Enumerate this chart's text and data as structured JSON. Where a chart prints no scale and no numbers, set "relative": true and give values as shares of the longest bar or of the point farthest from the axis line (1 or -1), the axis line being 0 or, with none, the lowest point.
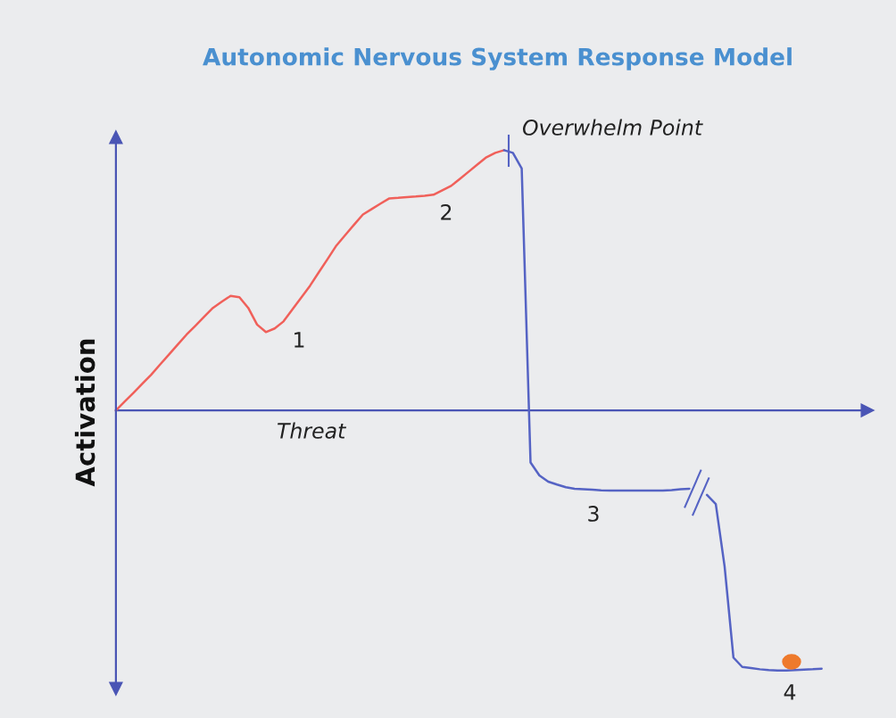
{
  "chart_data": {
    "type": "line",
    "title": "Autonomic Nervous System Response Model",
    "xlabel": "Threat",
    "ylabel": "Activation",
    "relative": true,
    "categories": [
      null,
      null,
      null,
      null,
      null,
      null,
      null,
      null,
      null,
      null,
      null,
      null,
      null,
      null,
      null,
      null,
      null,
      null,
      null,
      null,
      null,
      null,
      null,
      null,
      null,
      null,
      null,
      null,
      null,
      null,
      null,
      null,
      null,
      null,
      null,
      null,
      null,
      null,
      null,
      null,
      null,
      null,
      null,
      null,
      null,
      null,
      null,
      null,
      null,
      null,
      null,
      null,
      null,
      null,
      null,
      null,
      null,
      null,
      null,
      null,
      null,
      null,
      null,
      null,
      null,
      null,
      null,
      null,
      null,
      null,
      null,
      null,
      null,
      null,
      null,
      null,
      null,
      null,
      null,
      null,
      null
    ],
    "series": [
      {
        "color": "#f0605a",
        "values": [
          0,
          0.034,
          0.068,
          0.103,
          0.137,
          0.176,
          0.214,
          0.253,
          0.291,
          0.325,
          0.36,
          0.394,
          0.418,
          0.44,
          0.435,
          0.394,
          0.33,
          0.301,
          0.315,
          0.342,
          0.388,
          0.433,
          0.479,
          0.531,
          0.582,
          0.634,
          0.674,
          0.714,
          0.753,
          0.774,
          0.795,
          0.815,
          0.817,
          0.82,
          0.822,
          0.825,
          0.829,
          0.846,
          0.863,
          0.89,
          0.918,
          0.946,
          0.973,
          0.99,
          1.0,
          null,
          null,
          null,
          null,
          null,
          null,
          null,
          null,
          null,
          null,
          null,
          null,
          null,
          null,
          null,
          null,
          null,
          null,
          null,
          null,
          null,
          null,
          null,
          null,
          null,
          null,
          null,
          null,
          null,
          null,
          null,
          null,
          null,
          null,
          null,
          null
        ]
      },
      {
        "color": "#5563c4",
        "values": [
          null,
          null,
          null,
          null,
          null,
          null,
          null,
          null,
          null,
          null,
          null,
          null,
          null,
          null,
          null,
          null,
          null,
          null,
          null,
          null,
          null,
          null,
          null,
          null,
          null,
          null,
          null,
          null,
          null,
          null,
          null,
          null,
          null,
          null,
          null,
          null,
          null,
          null,
          null,
          null,
          null,
          null,
          null,
          null,
          1.0,
          0.99,
          0.93,
          -0.2,
          -0.25,
          -0.274,
          -0.285,
          -0.295,
          -0.301,
          -0.303,
          -0.305,
          -0.307,
          -0.308,
          -0.308,
          -0.308,
          -0.308,
          -0.308,
          -0.308,
          -0.308,
          -0.306,
          -0.303,
          -0.301,
          null,
          -0.325,
          -0.36,
          -0.6,
          -0.95,
          -0.986,
          -0.99,
          -0.995,
          -0.998,
          -1.0,
          -1.0,
          -0.998,
          -0.996,
          -0.995,
          -0.993
        ]
      }
    ],
    "ref_lines": [
      {
        "axis": "y",
        "value": 0,
        "color": "#4a55b5"
      }
    ],
    "annotations": [
      "Overwhelm Point",
      "1",
      "2",
      "3",
      "4"
    ]
  }
}
